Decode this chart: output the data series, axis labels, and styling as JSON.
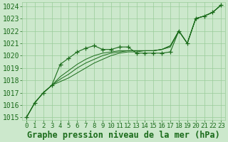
{
  "title": "Graphe pression niveau de la mer (hPa)",
  "ylabel_range": [
    1014.8,
    1024.3
  ],
  "yticks": [
    1015,
    1016,
    1017,
    1018,
    1019,
    1020,
    1021,
    1022,
    1023,
    1024
  ],
  "xticks": [
    0,
    1,
    2,
    3,
    4,
    5,
    6,
    7,
    8,
    9,
    10,
    11,
    12,
    13,
    14,
    15,
    16,
    17,
    18,
    19,
    20,
    21,
    22,
    23
  ],
  "bg_color": "#cce8cc",
  "grid_color": "#99cc99",
  "line_color": "#1a6b1a",
  "series_with_markers": [
    1015.0,
    1016.2,
    1017.0,
    1017.6,
    1019.3,
    1019.8,
    1020.3,
    1020.6,
    1020.8,
    1020.5,
    1020.5,
    1020.7,
    1020.7,
    1020.2,
    1020.2,
    1020.2,
    1020.2,
    1020.3,
    1022.0,
    1021.0,
    1023.0,
    1023.2,
    1023.5,
    1024.1
  ],
  "series_plain": [
    [
      1015.0,
      1016.2,
      1017.0,
      1017.6,
      1017.9,
      1018.2,
      1018.6,
      1019.0,
      1019.4,
      1019.7,
      1020.0,
      1020.2,
      1020.3,
      1020.3,
      1020.4,
      1020.4,
      1020.5,
      1020.7,
      1022.0,
      1021.0,
      1023.0,
      1023.2,
      1023.5,
      1024.1
    ],
    [
      1015.0,
      1016.2,
      1017.0,
      1017.6,
      1018.1,
      1018.5,
      1019.0,
      1019.4,
      1019.7,
      1020.0,
      1020.2,
      1020.3,
      1020.4,
      1020.4,
      1020.4,
      1020.4,
      1020.5,
      1020.8,
      1022.0,
      1021.0,
      1023.0,
      1023.2,
      1023.5,
      1024.1
    ],
    [
      1015.0,
      1016.2,
      1017.0,
      1017.6,
      1018.3,
      1018.8,
      1019.3,
      1019.7,
      1020.0,
      1020.2,
      1020.3,
      1020.4,
      1020.4,
      1020.4,
      1020.4,
      1020.4,
      1020.5,
      1020.8,
      1022.0,
      1021.0,
      1023.0,
      1023.2,
      1023.5,
      1024.1
    ]
  ],
  "font_color": "#1a6b1a",
  "font_size": 7,
  "label_fontsize": 8.5
}
